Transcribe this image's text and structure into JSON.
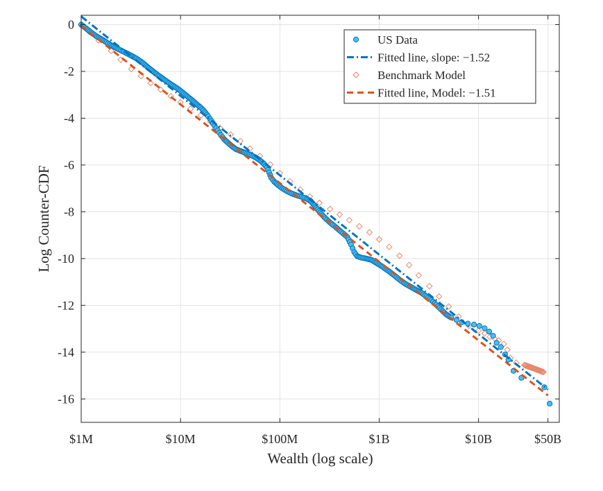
{
  "chart_data": {
    "type": "scatter",
    "title": "",
    "xlabel": "Wealth (log scale)",
    "ylabel": "Log Counter-CDF",
    "x_scale": "log",
    "xlim": [
      1000000,
      65000000000
    ],
    "ylim": [
      -17,
      0.4
    ],
    "grid": true,
    "legend_position": "top-right",
    "x_ticks": [
      {
        "value": 1000000,
        "label": "$1M"
      },
      {
        "value": 10000000,
        "label": "$10M"
      },
      {
        "value": 100000000,
        "label": "$100M"
      },
      {
        "value": 1000000000,
        "label": "$1B"
      },
      {
        "value": 10000000000,
        "label": "$10B"
      },
      {
        "value": 50000000000,
        "label": "$50B"
      }
    ],
    "y_ticks": [
      {
        "value": 0,
        "label": "0"
      },
      {
        "value": -2,
        "label": "-2"
      },
      {
        "value": -4,
        "label": "-4"
      },
      {
        "value": -6,
        "label": "-6"
      },
      {
        "value": -8,
        "label": "-8"
      },
      {
        "value": -10,
        "label": "-10"
      },
      {
        "value": -12,
        "label": "-12"
      },
      {
        "value": -14,
        "label": "-14"
      },
      {
        "value": -16,
        "label": "-16"
      }
    ],
    "series": [
      {
        "name": "US Data",
        "kind": "scatter",
        "marker": "circle",
        "color": "#0072BD",
        "fill": "#4DBEEE",
        "points": [
          [
            1000000,
            0
          ],
          [
            1150000,
            -0.2
          ],
          [
            1300000,
            -0.38
          ],
          [
            1450000,
            -0.52
          ],
          [
            1600000,
            -0.62
          ],
          [
            1800000,
            -0.76
          ],
          [
            2000000,
            -0.88
          ],
          [
            2250000,
            -1.0
          ],
          [
            2500000,
            -1.1
          ],
          [
            2800000,
            -1.2
          ],
          [
            3200000,
            -1.33
          ],
          [
            3600000,
            -1.45
          ],
          [
            4000000,
            -1.58
          ],
          [
            4400000,
            -1.72
          ],
          [
            4800000,
            -1.86
          ],
          [
            5300000,
            -2.0
          ],
          [
            5800000,
            -2.13
          ],
          [
            6400000,
            -2.26
          ],
          [
            7000000,
            -2.38
          ],
          [
            7700000,
            -2.5
          ],
          [
            8500000,
            -2.62
          ],
          [
            9300000,
            -2.73
          ],
          [
            10200000,
            -2.86
          ],
          [
            11200000,
            -3.0
          ],
          [
            12300000,
            -3.14
          ],
          [
            13500000,
            -3.28
          ],
          [
            14700000,
            -3.42
          ],
          [
            16000000,
            -3.55
          ],
          [
            17500000,
            -3.72
          ],
          [
            19000000,
            -3.92
          ],
          [
            20500000,
            -4.12
          ],
          [
            22000000,
            -4.32
          ],
          [
            23700000,
            -4.52
          ],
          [
            25500000,
            -4.72
          ],
          [
            27500000,
            -4.9
          ],
          [
            30000000,
            -5.05
          ],
          [
            33000000,
            -5.2
          ],
          [
            36000000,
            -5.32
          ],
          [
            40000000,
            -5.4
          ],
          [
            45000000,
            -5.48
          ],
          [
            50000000,
            -5.56
          ],
          [
            56000000,
            -5.66
          ],
          [
            62000000,
            -5.78
          ],
          [
            68000000,
            -5.92
          ],
          [
            74000000,
            -6.1
          ],
          [
            78000000,
            -6.32
          ],
          [
            82000000,
            -6.55
          ],
          [
            88000000,
            -6.72
          ],
          [
            96000000,
            -6.86
          ],
          [
            106000000,
            -7.0
          ],
          [
            118000000,
            -7.12
          ],
          [
            132000000,
            -7.22
          ],
          [
            148000000,
            -7.3
          ],
          [
            166000000,
            -7.36
          ],
          [
            186000000,
            -7.44
          ],
          [
            205000000,
            -7.55
          ],
          [
            222000000,
            -7.72
          ],
          [
            240000000,
            -7.9
          ],
          [
            262000000,
            -8.1
          ],
          [
            288000000,
            -8.28
          ],
          [
            318000000,
            -8.45
          ],
          [
            352000000,
            -8.6
          ],
          [
            390000000,
            -8.76
          ],
          [
            432000000,
            -8.92
          ],
          [
            478000000,
            -9.08
          ],
          [
            520000000,
            -9.4
          ],
          [
            560000000,
            -9.72
          ],
          [
            600000000,
            -9.9
          ],
          [
            660000000,
            -9.96
          ],
          [
            740000000,
            -10.0
          ],
          [
            840000000,
            -10.06
          ],
          [
            950000000,
            -10.2
          ],
          [
            1080000000,
            -10.35
          ],
          [
            1230000000,
            -10.52
          ],
          [
            1400000000,
            -10.7
          ],
          [
            1600000000,
            -10.9
          ],
          [
            1830000000,
            -11.08
          ],
          [
            2100000000,
            -11.22
          ],
          [
            2400000000,
            -11.36
          ],
          [
            2700000000,
            -11.48
          ],
          [
            3000000000,
            -11.62
          ],
          [
            3350000000,
            -11.78
          ],
          [
            3750000000,
            -11.98
          ],
          [
            4200000000,
            -12.18
          ],
          [
            4700000000,
            -12.38
          ],
          [
            5300000000,
            -12.52
          ],
          [
            6000000000,
            -12.62
          ],
          [
            6800000000,
            -12.72
          ],
          [
            7800000000,
            -12.78
          ],
          [
            9000000000,
            -12.82
          ],
          [
            10200000000,
            -12.88
          ],
          [
            11500000000,
            -12.98
          ],
          [
            12800000000,
            -13.12
          ],
          [
            14000000000,
            -13.3
          ],
          [
            15200000000,
            -13.6
          ],
          [
            16800000000,
            -13.78
          ],
          [
            18500000000,
            -14.1
          ],
          [
            20000000000,
            -14.32
          ],
          [
            22500000000,
            -14.8
          ],
          [
            27000000000,
            -15.1
          ],
          [
            46000000000,
            -15.5
          ],
          [
            52000000000,
            -16.2
          ]
        ]
      },
      {
        "name": "Fitted line, slope: −1.52",
        "kind": "line",
        "dash": "dashdot",
        "color": "#0072BD",
        "points": [
          [
            1000000,
            0.35
          ],
          [
            50000000000,
            -15.6
          ]
        ]
      },
      {
        "name": "Benchmark Model",
        "kind": "scatter",
        "marker": "diamond",
        "color": "#E8856A",
        "points": [
          [
            1000000,
            0
          ],
          [
            1200000,
            -0.3
          ],
          [
            1500000,
            -0.68
          ],
          [
            2000000,
            -1.12
          ],
          [
            2500000,
            -1.5
          ],
          [
            3200000,
            -1.9
          ],
          [
            4000000,
            -2.2
          ],
          [
            5000000,
            -2.5
          ],
          [
            6300000,
            -2.78
          ],
          [
            8000000,
            -3.06
          ],
          [
            10000000,
            -3.32
          ],
          [
            12600000,
            -3.6
          ],
          [
            16000000,
            -3.88
          ],
          [
            20000000,
            -4.15
          ],
          [
            25000000,
            -4.42
          ],
          [
            32000000,
            -4.7
          ],
          [
            40000000,
            -4.98
          ],
          [
            50000000,
            -5.3
          ],
          [
            63000000,
            -5.62
          ],
          [
            80000000,
            -5.98
          ],
          [
            100000000,
            -6.35
          ],
          [
            126000000,
            -6.7
          ],
          [
            160000000,
            -7.05
          ],
          [
            200000000,
            -7.35
          ],
          [
            250000000,
            -7.62
          ],
          [
            320000000,
            -7.88
          ],
          [
            400000000,
            -8.12
          ],
          [
            500000000,
            -8.36
          ],
          [
            630000000,
            -8.62
          ],
          [
            800000000,
            -8.88
          ],
          [
            1000000000,
            -9.18
          ],
          [
            1260000000,
            -9.5
          ],
          [
            1600000000,
            -9.88
          ],
          [
            2000000000,
            -10.28
          ],
          [
            2500000000,
            -10.72
          ],
          [
            3200000000,
            -11.18
          ],
          [
            4000000000,
            -11.62
          ],
          [
            5000000000,
            -12.05
          ],
          [
            6300000000,
            -12.48
          ],
          [
            8000000000,
            -12.88
          ],
          [
            10000000000,
            -13.08
          ],
          [
            11500000000,
            -13.2
          ],
          [
            13000000000,
            -13.35
          ],
          [
            14500000000,
            -13.42
          ],
          [
            16000000000,
            -13.5
          ],
          [
            18000000000,
            -13.65
          ],
          [
            19500000000,
            -13.9
          ],
          [
            21000000000,
            -14.25
          ],
          [
            24000000000,
            -14.45
          ],
          [
            29000000000,
            -14.55
          ],
          [
            45000000000,
            -14.85
          ]
        ]
      },
      {
        "name": "Fitted line, Model: −1.51",
        "kind": "line",
        "dash": "dashed",
        "color": "#D95319",
        "points": [
          [
            1000000,
            -0.05
          ],
          [
            50000000000,
            -15.85
          ]
        ]
      }
    ]
  }
}
